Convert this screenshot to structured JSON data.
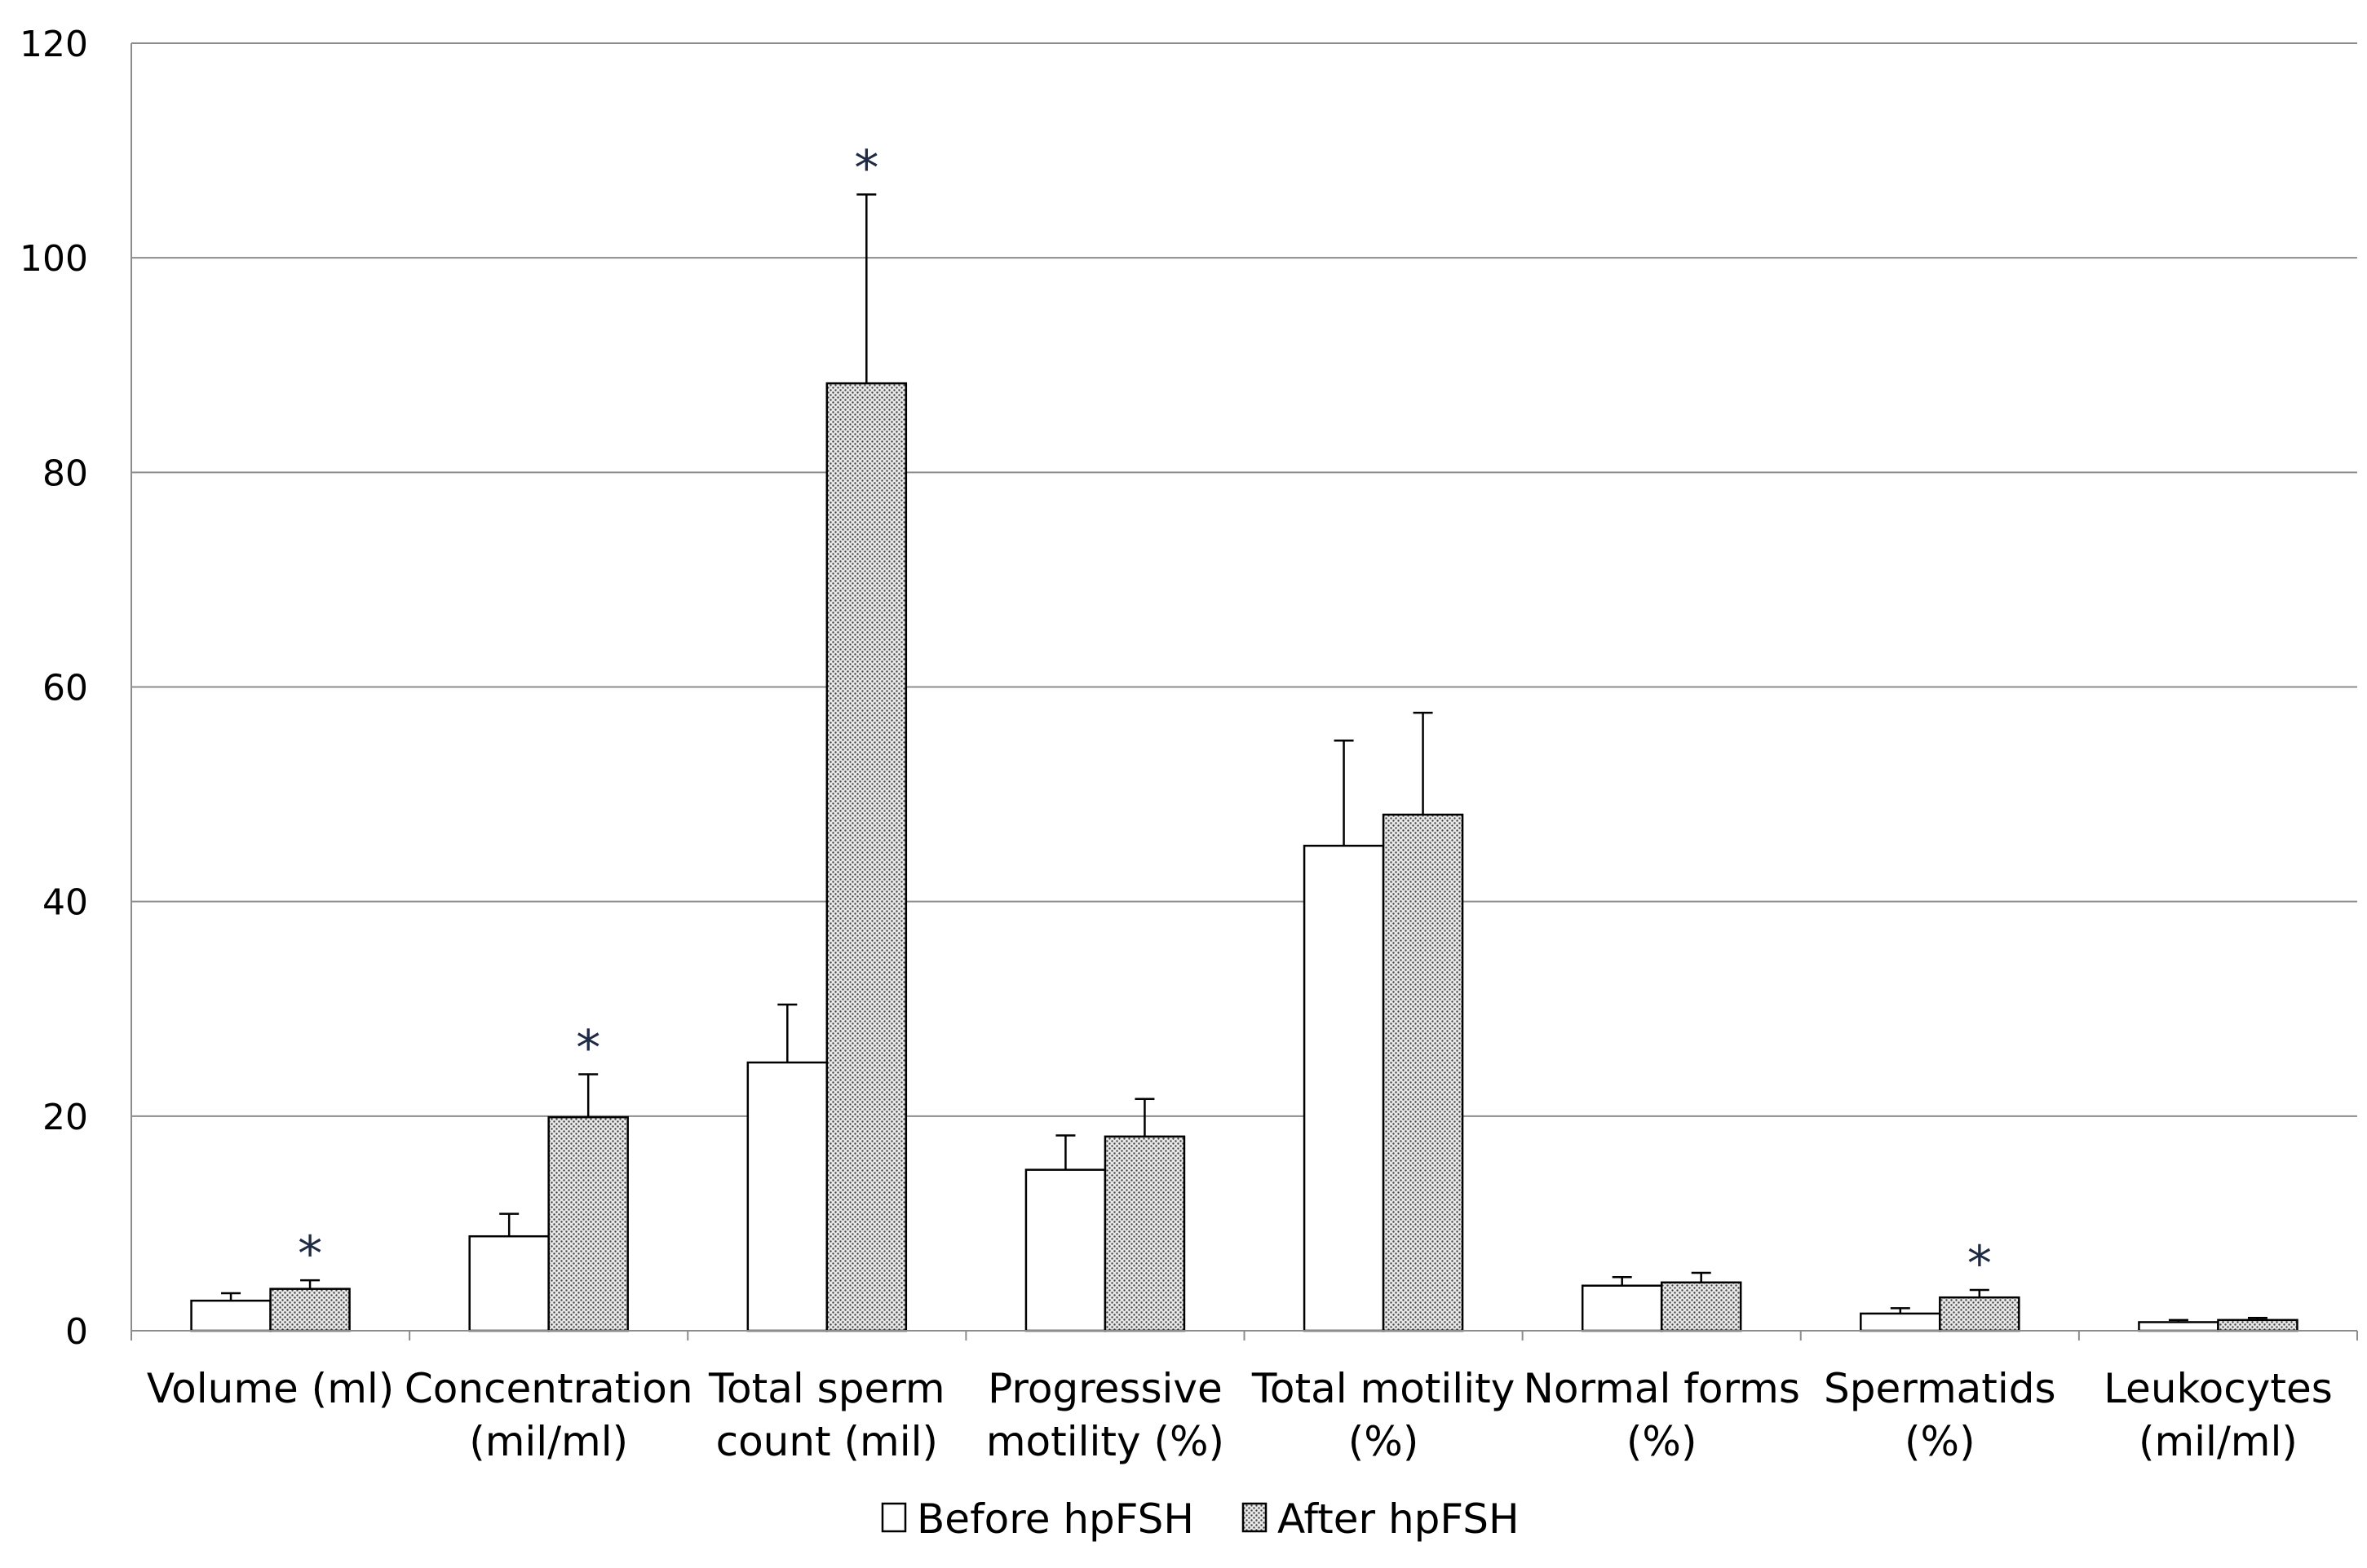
{
  "chart_data": {
    "type": "bar",
    "title": "",
    "xlabel": "",
    "ylabel": "",
    "ylim": [
      0,
      120
    ],
    "yticks": [
      0,
      20,
      40,
      60,
      80,
      100,
      120
    ],
    "grid": true,
    "legend_position": "bottom-center",
    "categories": [
      [
        "Volume (ml)"
      ],
      [
        "Concentration",
        "(mil/ml)"
      ],
      [
        "Total sperm",
        "count (mil)"
      ],
      [
        "Progressive",
        "motility (%)"
      ],
      [
        "Total motility",
        "(%)"
      ],
      [
        "Normal forms",
        "(%)"
      ],
      [
        "Spermatids",
        "(%)"
      ],
      [
        "Leukocytes",
        "(mil/ml)"
      ]
    ],
    "series": [
      {
        "name": "Before hpFSH",
        "pattern": "white",
        "values": [
          2.8,
          8.8,
          25.0,
          15.0,
          45.2,
          4.2,
          1.6,
          0.8
        ],
        "errors": [
          0.7,
          2.1,
          5.4,
          3.2,
          9.8,
          0.8,
          0.5,
          0.2
        ]
      },
      {
        "name": "After hpFSH",
        "pattern": "dotted",
        "values": [
          3.9,
          19.9,
          88.3,
          18.1,
          48.1,
          4.5,
          3.1,
          1.0
        ],
        "errors": [
          0.8,
          4.0,
          17.6,
          3.5,
          9.5,
          0.9,
          0.7,
          0.2
        ]
      }
    ],
    "significance_marker": "*",
    "significant_categories": [
      0,
      1,
      2,
      6
    ]
  }
}
